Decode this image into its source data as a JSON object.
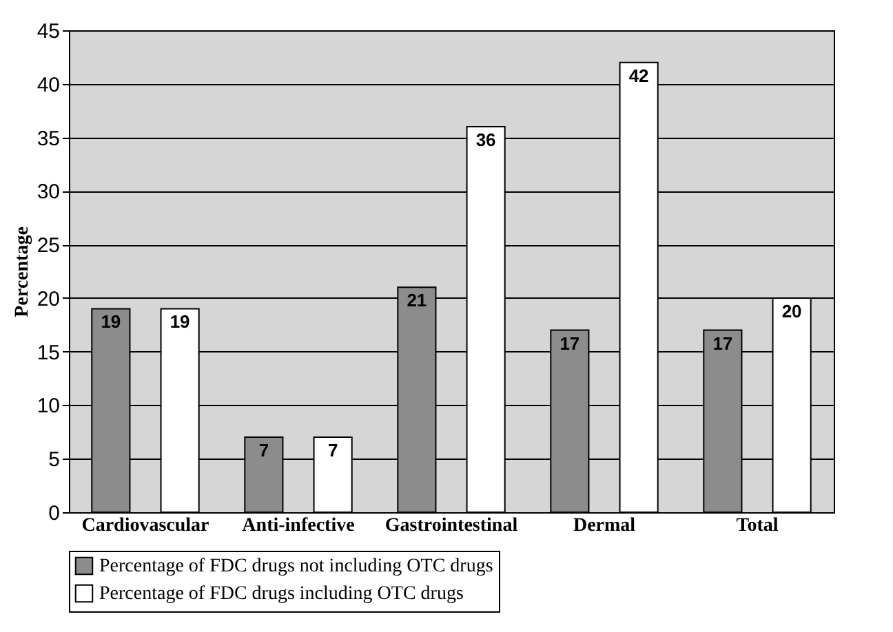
{
  "chart_data": {
    "type": "bar",
    "ylabel": "Percentage",
    "categories": [
      "Cardiovascular",
      "Anti-infective",
      "Gastrointestinal",
      "Dermal",
      "Total"
    ],
    "series": [
      {
        "name": "Percentage of FDC drugs not including OTC drugs",
        "color": "#8c8c8c",
        "values": [
          19,
          7,
          21,
          17,
          17
        ]
      },
      {
        "name": "Percentage of FDC drugs including OTC drugs",
        "color": "#ffffff",
        "values": [
          19,
          7,
          36,
          42,
          20
        ]
      }
    ],
    "ylim": [
      0,
      45
    ],
    "yticks": [
      0,
      5,
      10,
      15,
      20,
      25,
      30,
      35,
      40,
      45
    ],
    "grid": "y",
    "legend": "bottom",
    "data_labels": true
  }
}
